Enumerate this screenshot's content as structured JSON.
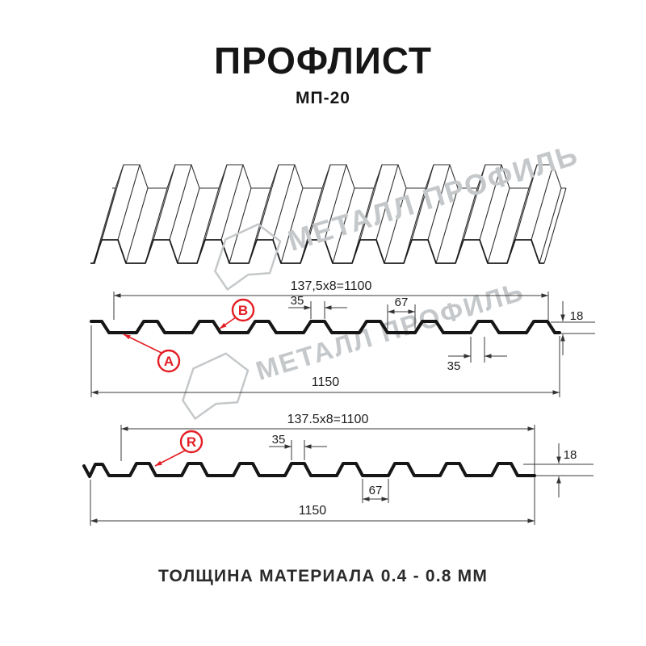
{
  "colors": {
    "red": "#e31e24",
    "ink": "#161616",
    "dim": "#3a3a3a",
    "wm": "#c5c8ca"
  },
  "header": {
    "title": "ПРОФЛИСТ",
    "subtitle": "МП-20"
  },
  "watermark": {
    "text": "МЕТАЛЛ ПРОФИЛЬ"
  },
  "section1": {
    "top_dim": "137,5x8=1100",
    "dim_35_top": "35",
    "dim_67": "67",
    "dim_18": "18",
    "dim_35_bottom": "35",
    "total_width": "1150",
    "callout_a": "A",
    "callout_b": "B"
  },
  "section2": {
    "top_dim": "137.5x8=1100",
    "dim_35": "35",
    "dim_18": "18",
    "dim_67": "67",
    "total_width": "1150",
    "callout_r": "R"
  },
  "footer": {
    "text": "ТОЛЩИНА МАТЕРИАЛА 0.4 - 0.8 ММ"
  }
}
